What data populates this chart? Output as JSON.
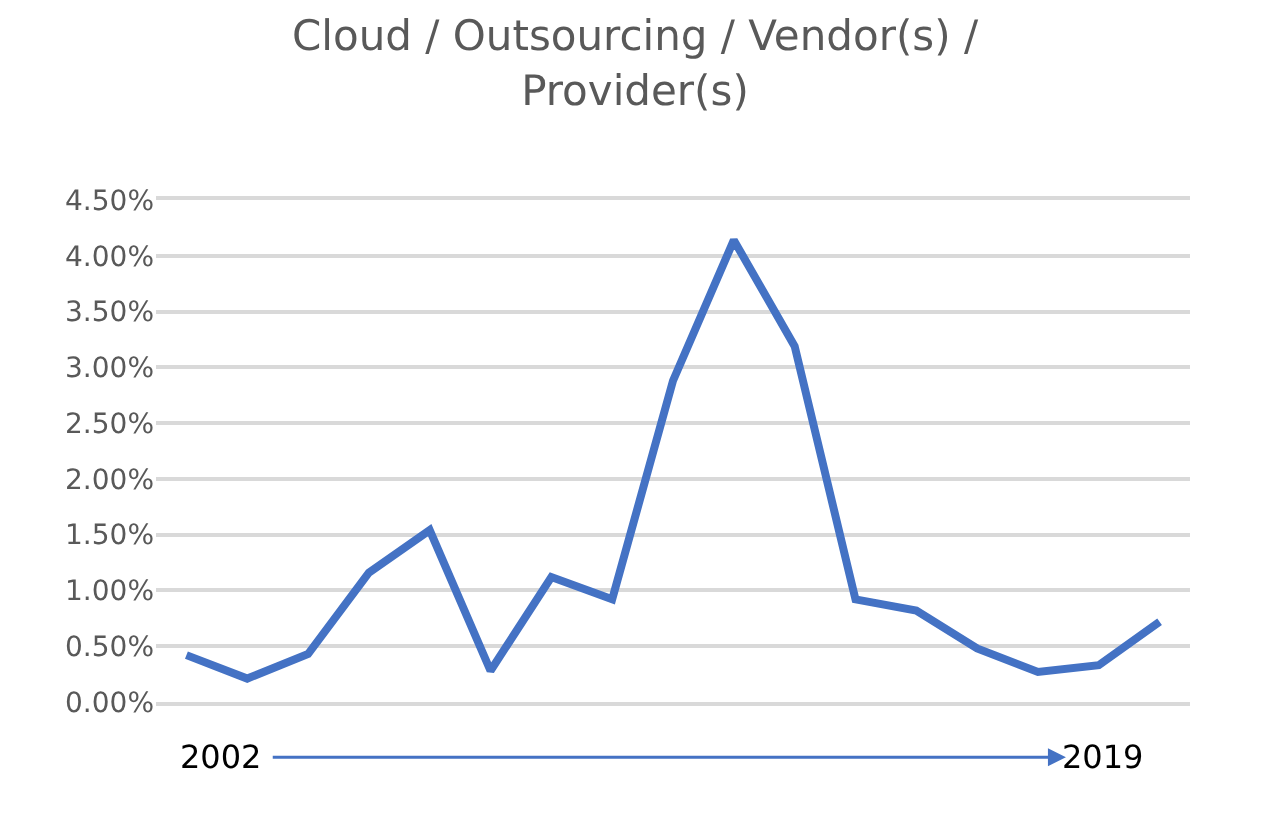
{
  "chart_data": {
    "type": "line",
    "title": "Cloud / Outsourcing / Vendor(s) / Provider(s)",
    "categories": [
      null,
      null,
      null,
      null,
      null,
      null,
      null,
      null,
      null,
      null,
      null,
      null,
      null,
      null,
      null,
      null,
      null
    ],
    "series": [
      {
        "color": "#4472c4",
        "values": [
          0.42,
          0.21,
          0.43,
          1.16,
          1.54,
          0.28,
          1.12,
          0.92,
          2.88,
          4.14,
          3.19,
          0.92,
          0.82,
          0.48,
          0.27,
          0.33,
          0.72
        ]
      }
    ],
    "ylim": [
      0,
      4.5
    ],
    "yticks": [
      {
        "value": 0,
        "label": "0.00%"
      },
      {
        "value": 0.5,
        "label": "0.50%"
      },
      {
        "value": 1,
        "label": "1.00%"
      },
      {
        "value": 1.5,
        "label": "1.50%"
      },
      {
        "value": 2,
        "label": "2.00%"
      },
      {
        "value": 2.5,
        "label": "2.50%"
      },
      {
        "value": 3,
        "label": "3.00%"
      },
      {
        "value": 3.5,
        "label": "3.50%"
      },
      {
        "value": 4,
        "label": "4.00%"
      },
      {
        "value": 4.5,
        "label": "4.50%"
      }
    ],
    "grid": "y",
    "legend": false,
    "marker": "none",
    "line_style": "solid",
    "annotations": [
      "2002",
      "2019"
    ]
  }
}
